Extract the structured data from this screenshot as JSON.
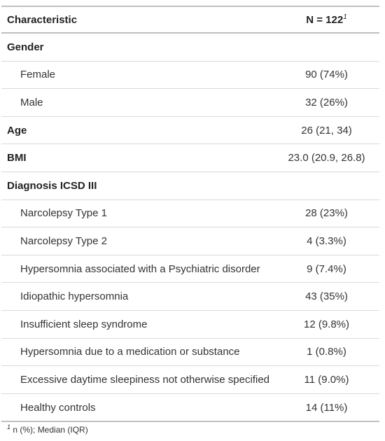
{
  "header": {
    "characteristic": "Characteristic",
    "n_label": "N = 122",
    "n_footnote_mark": "1"
  },
  "rows": [
    {
      "label": "Gender",
      "value": "",
      "type": "group"
    },
    {
      "label": "Female",
      "value": "90 (74%)",
      "type": "indent"
    },
    {
      "label": "Male",
      "value": "32 (26%)",
      "type": "indent"
    },
    {
      "label": "Age",
      "value": "26 (21, 34)",
      "type": "group"
    },
    {
      "label": "BMI",
      "value": "23.0 (20.9, 26.8)",
      "type": "group"
    },
    {
      "label": "Diagnosis ICSD III",
      "value": "",
      "type": "group"
    },
    {
      "label": "Narcolepsy Type 1",
      "value": "28 (23%)",
      "type": "indent"
    },
    {
      "label": "Narcolepsy Type 2",
      "value": "4 (3.3%)",
      "type": "indent"
    },
    {
      "label": "Hypersomnia associated with a Psychiatric disorder",
      "value": "9 (7.4%)",
      "type": "indent"
    },
    {
      "label": "Idiopathic hypersomnia",
      "value": "43 (35%)",
      "type": "indent"
    },
    {
      "label": "Insufficient sleep syndrome",
      "value": "12 (9.8%)",
      "type": "indent"
    },
    {
      "label": "Hypersomnia due to a medication or substance",
      "value": "1 (0.8%)",
      "type": "indent"
    },
    {
      "label": "Excessive daytime sleepiness not otherwise specified",
      "value": "11 (9.0%)",
      "type": "indent"
    },
    {
      "label": "Healthy controls",
      "value": "14 (11%)",
      "type": "indent"
    }
  ],
  "footnote": {
    "mark": "1",
    "text": " n (%); Median (IQR)"
  }
}
